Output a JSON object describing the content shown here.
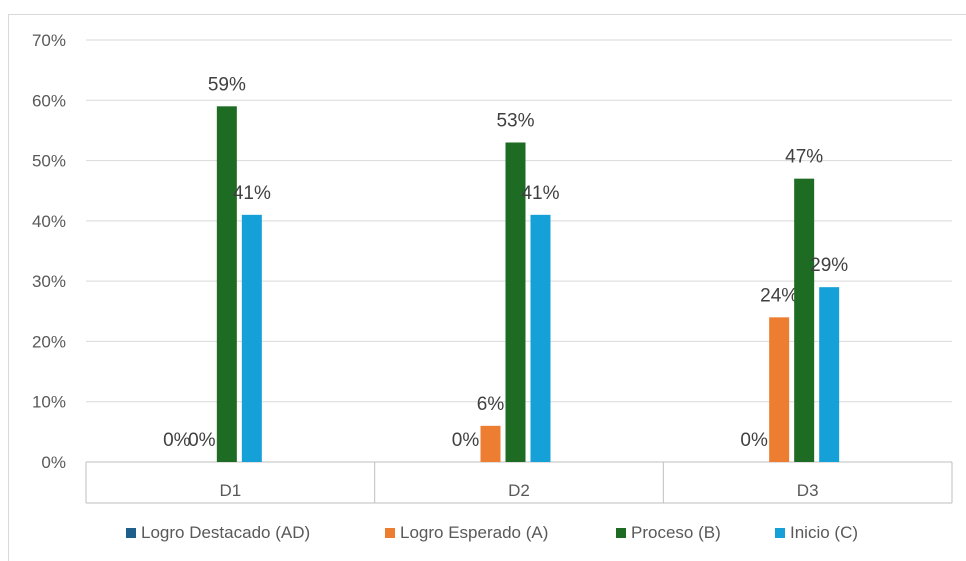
{
  "chart_data": {
    "type": "bar",
    "categories": [
      "D1",
      "D2",
      "D3"
    ],
    "series": [
      {
        "name": "Logro Destacado (AD)",
        "color": "#1f5f8b",
        "values": [
          0,
          0,
          0
        ],
        "labels": [
          "0%",
          "0%",
          "0%"
        ]
      },
      {
        "name": "Logro Esperado (A)",
        "color": "#ed7d31",
        "values": [
          0,
          6,
          24
        ],
        "labels": [
          "0%",
          "6%",
          "24%"
        ]
      },
      {
        "name": "Proceso (B)",
        "color": "#1e6b24",
        "values": [
          59,
          53,
          47
        ],
        "labels": [
          "59%",
          "53%",
          "47%"
        ]
      },
      {
        "name": "Inicio (C)",
        "color": "#16a0d8",
        "values": [
          41,
          41,
          29
        ],
        "labels": [
          "41%",
          "41%",
          "29%"
        ]
      }
    ],
    "yticks": [
      "0%",
      "10%",
      "20%",
      "30%",
      "40%",
      "50%",
      "60%",
      "70%"
    ],
    "ylim": [
      0,
      70
    ],
    "grid": true,
    "legend": "bottom"
  }
}
